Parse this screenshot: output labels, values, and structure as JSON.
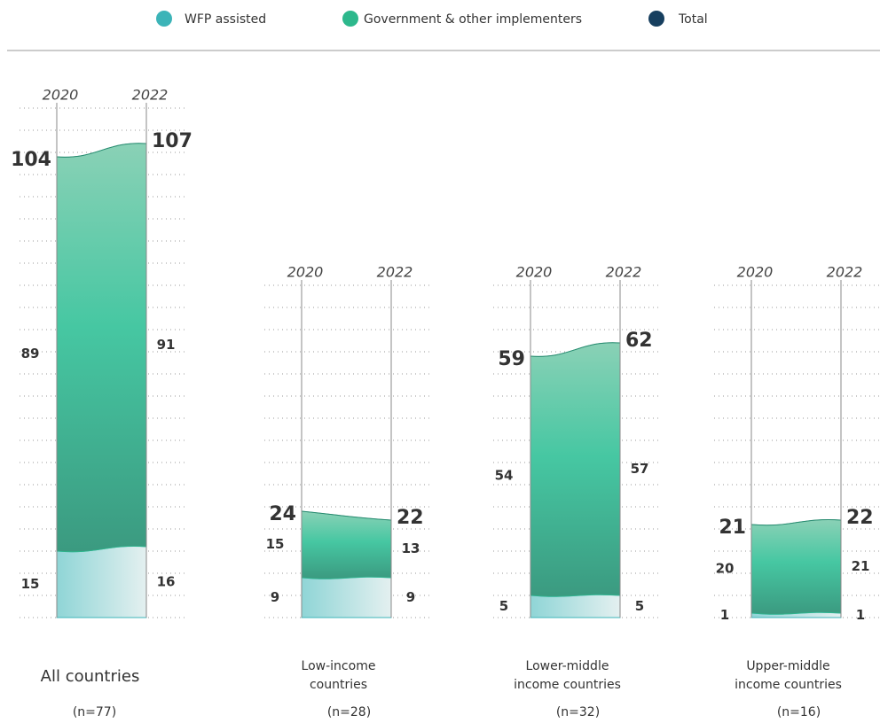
{
  "legend": [
    {
      "name": "WFP assisted",
      "color": "#3cb4b8"
    },
    {
      "name": "Government & other implementers",
      "color": "#2db88c"
    },
    {
      "name": "Total",
      "color": "#173f5f"
    }
  ],
  "chart_data": [
    {
      "type": "stacked_area",
      "label": [
        "All countries"
      ],
      "n": "(n=77)",
      "categories": [
        "2020",
        "2022"
      ],
      "series": [
        {
          "values": [
            15,
            16
          ]
        },
        {
          "values": [
            89,
            91
          ]
        },
        {
          "values": [
            104,
            107
          ]
        }
      ],
      "ylim": [
        0,
        115
      ],
      "yticks": [
        0,
        5,
        10,
        15,
        20,
        25,
        30,
        35,
        40,
        45,
        50,
        55,
        60,
        65,
        70,
        75,
        80,
        85,
        90,
        95,
        100,
        105,
        110,
        115
      ],
      "grid": true
    },
    {
      "type": "stacked_area",
      "label": [
        "Low-income",
        "countries"
      ],
      "n": "(n=28)",
      "categories": [
        "2020",
        "2022"
      ],
      "series": [
        {
          "values": [
            9,
            9
          ]
        },
        {
          "values": [
            15,
            13
          ]
        },
        {
          "values": [
            24,
            22
          ]
        }
      ],
      "ylim": [
        0,
        75
      ],
      "yticks": [
        0,
        5,
        10,
        15,
        20,
        25,
        30,
        35,
        40,
        45,
        50,
        55,
        60,
        65,
        70,
        75
      ],
      "grid": true
    },
    {
      "type": "stacked_area",
      "label": [
        "Lower-middle",
        "income countries"
      ],
      "n": "(n=32)",
      "categories": [
        "2020",
        "2022"
      ],
      "series": [
        {
          "values": [
            5,
            5
          ]
        },
        {
          "values": [
            54,
            57
          ]
        },
        {
          "values": [
            59,
            62
          ]
        }
      ],
      "ylim": [
        0,
        75
      ],
      "yticks": [
        0,
        5,
        10,
        15,
        20,
        25,
        30,
        35,
        40,
        45,
        50,
        55,
        60,
        65,
        70,
        75
      ],
      "grid": true
    },
    {
      "type": "stacked_area",
      "label": [
        "Upper-middle",
        "income countries"
      ],
      "n": "(n=16)",
      "categories": [
        "2020",
        "2022"
      ],
      "series": [
        {
          "values": [
            1,
            1
          ]
        },
        {
          "values": [
            20,
            21
          ]
        },
        {
          "values": [
            21,
            22
          ]
        }
      ],
      "ylim": [
        0,
        75
      ],
      "yticks": [
        0,
        5,
        10,
        15,
        20,
        25,
        30,
        35,
        40,
        45,
        50,
        55,
        60,
        65,
        70,
        75
      ],
      "grid": true
    }
  ]
}
